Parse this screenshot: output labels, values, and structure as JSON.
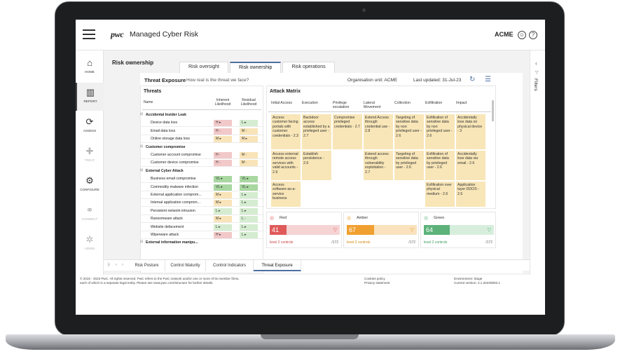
{
  "app": {
    "logo": "pwc",
    "title": "Managed Cyber Risk",
    "org": "ACME"
  },
  "leftnav": [
    {
      "label": "HOME",
      "icon": "home-icon",
      "glyph": "⌂",
      "state": "normal"
    },
    {
      "label": "REPORT",
      "icon": "report-icon",
      "glyph": "▥",
      "state": "active"
    },
    {
      "label": "ASSESS",
      "icon": "assess-icon",
      "glyph": "⟳",
      "state": "normal"
    },
    {
      "label": "TREAT",
      "icon": "treat-icon",
      "glyph": "✚",
      "state": "disabled"
    },
    {
      "label": "CONFIGURE",
      "icon": "configure-icon",
      "glyph": "⚙",
      "state": "normal"
    },
    {
      "label": "CONNECT",
      "icon": "connect-icon",
      "glyph": "⚭",
      "state": "disabled"
    },
    {
      "label": "ADMIN",
      "icon": "admin-icon",
      "glyph": "✲",
      "state": "disabled"
    }
  ],
  "page": {
    "title": "Risk ownership",
    "tabs": [
      {
        "label": "Risk oversight",
        "active": false
      },
      {
        "label": "Risk ownership",
        "active": true
      },
      {
        "label": "Risk operations",
        "active": false
      }
    ]
  },
  "threat_exposure": {
    "title": "Threat Exposure",
    "subtitle": "How real is the threat we face?",
    "org_unit_label": "Organisation unit:",
    "org_unit_value": "ACME",
    "last_updated_label": "Last updated:",
    "last_updated_value": "31-Jul-23"
  },
  "threats": {
    "title": "Threats",
    "col_name": "Name",
    "col_inherent": [
      "Inherent",
      "Likelihood"
    ],
    "col_residual": [
      "Residual",
      "Likelihood"
    ],
    "rows": [
      {
        "type": "group",
        "name": "Accidental Insider Leak"
      },
      {
        "type": "item",
        "name": "Device data loss",
        "inherent": "H ▸",
        "inherent_level": "h",
        "residual": "L ▸",
        "residual_level": "l"
      },
      {
        "type": "item",
        "name": "Email data loss",
        "inherent": "H -",
        "inherent_level": "h",
        "residual": "M -",
        "residual_level": "m"
      },
      {
        "type": "item",
        "name": "Online storage data loss",
        "inherent": "M ▸",
        "inherent_level": "m",
        "residual": "M ▸",
        "residual_level": "m"
      },
      {
        "type": "group",
        "name": "Customer compromise"
      },
      {
        "type": "item",
        "name": "Customer account compromise",
        "inherent": "H -",
        "inherent_level": "h",
        "residual": "M -",
        "residual_level": "m"
      },
      {
        "type": "item",
        "name": "Customer device compromise",
        "inherent": "H -",
        "inherent_level": "h",
        "residual": "M -",
        "residual_level": "m"
      },
      {
        "type": "group",
        "name": "External Cyber Attack"
      },
      {
        "type": "item",
        "name": "Business email compromise",
        "inherent": "VL ▸",
        "inherent_level": "vl",
        "residual": "VL ▸",
        "residual_level": "vl"
      },
      {
        "type": "item",
        "name": "Commodity malware infection",
        "inherent": "VL ▸",
        "inherent_level": "vl",
        "residual": "VL ▸",
        "residual_level": "vl"
      },
      {
        "type": "item",
        "name": "External application comprom...",
        "inherent": "M ▸",
        "inherent_level": "m",
        "residual": "L ▸",
        "residual_level": "l"
      },
      {
        "type": "item",
        "name": "Internal application comprom...",
        "inherent": "M ▸",
        "inherent_level": "m",
        "residual": "L ▸",
        "residual_level": "l"
      },
      {
        "type": "item",
        "name": "Persistent network intrusion",
        "inherent": "L ▸",
        "inherent_level": "l",
        "residual": "L ▸",
        "residual_level": "l"
      },
      {
        "type": "item",
        "name": "Ransomware attack",
        "inherent": "M ▸",
        "inherent_level": "m",
        "residual": "L -",
        "residual_level": "l"
      },
      {
        "type": "item",
        "name": "Website defacement",
        "inherent": "L ▸",
        "inherent_level": "l",
        "residual": "L ▸",
        "residual_level": "l"
      },
      {
        "type": "item",
        "name": "Wiperware attack",
        "inherent": "H ▸",
        "inherent_level": "h",
        "residual": "L ▸",
        "residual_level": "l"
      },
      {
        "type": "group",
        "name": "External information manipu..."
      }
    ]
  },
  "attack_matrix": {
    "title": "Attack Matrix",
    "columns": [
      "Initial Access",
      "Execution",
      "Privilege escalation",
      "Lateral Movement",
      "Collection",
      "Exfiltration",
      "Impact"
    ],
    "cells": [
      [
        "Access customer facing portals with customer credentials - 2.3",
        "Backdoor access established by a privileged user - 2.7",
        "Compromise privileged credentials - 2.7",
        "Extend Access through credential use - 2.8",
        "Targeting of sensitive data by non privileged user - 2.6",
        "Exfiltration of sensitive data by non privileged user - 2.6",
        "Accidentally lose data on physical device - 3"
      ],
      [
        "Access external remote access services with valid accounts - 2.9",
        "Establish persistence - 2.6",
        "",
        "Extend access through vulnerability exploitation - 2.7",
        "Targeting of sensitive data by privileged user - 2.6",
        "Exfiltration of sensitive data by privileged user - 2.6",
        "Accidentally lose data via email - 2.6"
      ],
      [
        "Access software-as-a-service business",
        "",
        "",
        "",
        "",
        "Exfiltration over physical medium - 2.6",
        "Application layer DDOS - 2.6"
      ]
    ]
  },
  "scores": [
    {
      "name": "Red",
      "value": "41",
      "fraction": 0.24,
      "controls": "level 2 controls",
      "total": "/172",
      "color": "#e05a5a",
      "track": "#f6d4d4",
      "foot_color": "#c94444",
      "icon": "red-status-icon"
    },
    {
      "name": "Amber",
      "value": "67",
      "fraction": 0.39,
      "controls": "level 2 controls",
      "total": "/172",
      "color": "#f0a030",
      "track": "#f9e2bd",
      "foot_color": "#d6860e",
      "icon": "amber-status-icon"
    },
    {
      "name": "Green",
      "value": "64",
      "fraction": 0.37,
      "controls": "level 2 controls",
      "total": "/172",
      "color": "#5db27a",
      "track": "#d7eedd",
      "foot_color": "#3d9a5d",
      "icon": "green-status-icon"
    }
  ],
  "filters": {
    "label": "Filters"
  },
  "bottom_tabs": [
    {
      "label": "Risk Posture",
      "active": false
    },
    {
      "label": "Control Maturity",
      "active": false
    },
    {
      "label": "Control Indicators",
      "active": false
    },
    {
      "label": "Threat Exposure",
      "active": true
    }
  ],
  "footer": {
    "copyright_1": "© 2015 - 2023 PwC. All rights reserved. PwC refers to the PwC network and/or one or more of its member firms,",
    "copyright_2": "each of which is a separate legal entity.   Please see www.pwc.com/structure for further details.",
    "cookies": "Cookies policy",
    "privacy": "Privacy statement",
    "environment": "Environment: Stage",
    "version": "Current version: 2.1.20230803.1"
  }
}
